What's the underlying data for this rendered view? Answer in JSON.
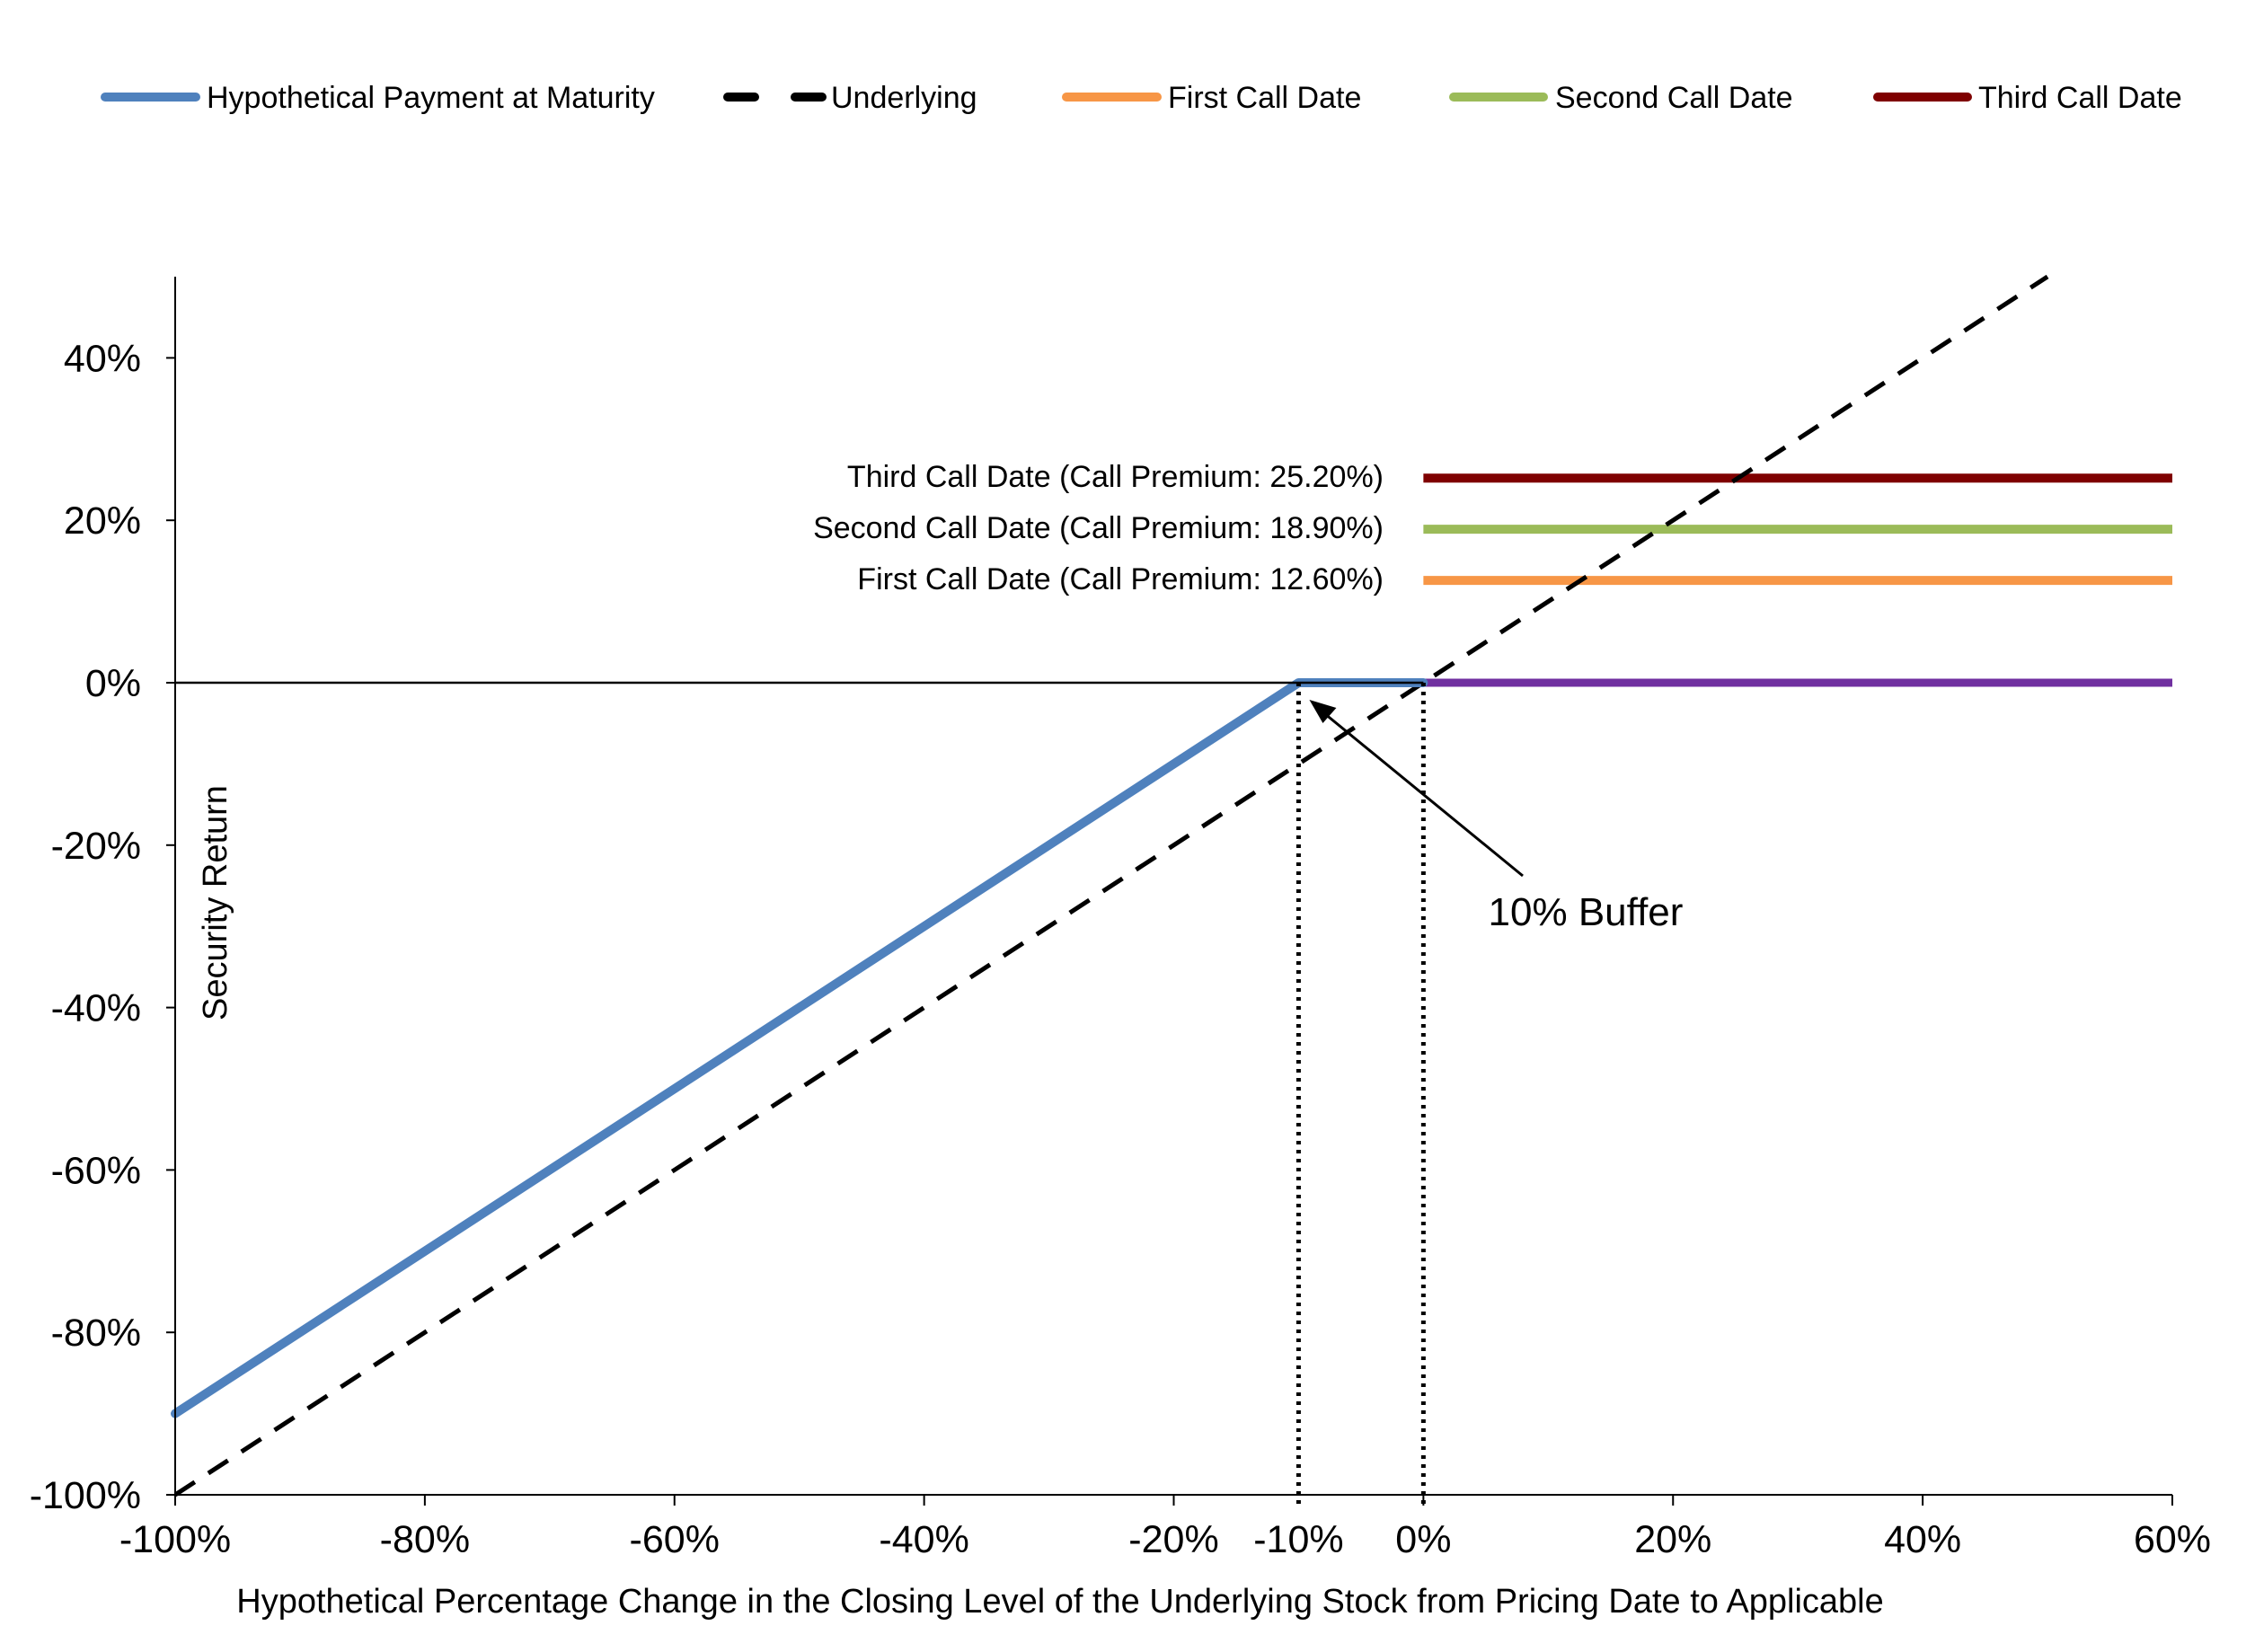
{
  "chart_data": {
    "type": "line",
    "xlabel": "Hypothetical Percentage Change in the Closing Level of the Underlying Stock from Pricing Date to Applicable",
    "ylabel": "Security Return",
    "xlim": [
      -100,
      60
    ],
    "ylim": [
      -100,
      50
    ],
    "x_ticks": [
      {
        "value": -100,
        "label": "-100%"
      },
      {
        "value": -80,
        "label": "-80%"
      },
      {
        "value": -60,
        "label": "-60%"
      },
      {
        "value": -40,
        "label": "-40%"
      },
      {
        "value": -20,
        "label": "-20%"
      },
      {
        "value": -10,
        "label": "-10%"
      },
      {
        "value": 0,
        "label": "0%"
      },
      {
        "value": 20,
        "label": "20%"
      },
      {
        "value": 40,
        "label": "40%"
      },
      {
        "value": 60,
        "label": "60%"
      }
    ],
    "y_ticks": [
      {
        "value": -100,
        "label": "-100%"
      },
      {
        "value": -80,
        "label": "-80%"
      },
      {
        "value": -60,
        "label": "-60%"
      },
      {
        "value": -40,
        "label": "-40%"
      },
      {
        "value": -20,
        "label": "-20%"
      },
      {
        "value": 0,
        "label": "0%"
      },
      {
        "value": 20,
        "label": "20%"
      },
      {
        "value": 40,
        "label": "40%"
      }
    ],
    "grid": false,
    "legend_position": "top",
    "series": [
      {
        "name": "Hypothetical Payment at Maturity",
        "color": "#4f81bd",
        "style": "solid",
        "x": [
          -100,
          -10,
          0,
          60
        ],
        "y": [
          -90,
          0,
          0,
          0
        ]
      },
      {
        "name": "Underlying",
        "color": "#000000",
        "style": "dashed",
        "x": [
          -100,
          50
        ],
        "y": [
          -100,
          50
        ]
      },
      {
        "name": "First Call Date",
        "color": "#f79646",
        "style": "solid",
        "x": [
          0,
          60
        ],
        "y": [
          12.6,
          12.6
        ]
      },
      {
        "name": "Second Call Date",
        "color": "#9bbb59",
        "style": "solid",
        "x": [
          0,
          60
        ],
        "y": [
          18.9,
          18.9
        ]
      },
      {
        "name": "Third Call Date",
        "color": "#7f0000",
        "style": "solid",
        "x": [
          0,
          60
        ],
        "y": [
          25.2,
          25.2
        ]
      }
    ],
    "zero_segment_color": "#7030a0",
    "annotations": {
      "call_labels": [
        {
          "text": "Third Call Date (Call Premium: 25.20%)",
          "y": 25.2
        },
        {
          "text": "Second Call Date (Call Premium: 18.90%)",
          "y": 18.9
        },
        {
          "text": "First Call Date (Call Premium: 12.60%)",
          "y": 12.6
        }
      ],
      "buffer_label": "10% Buffer",
      "buffer_x": -10,
      "dotted_verticals": [
        -10,
        0
      ]
    }
  }
}
